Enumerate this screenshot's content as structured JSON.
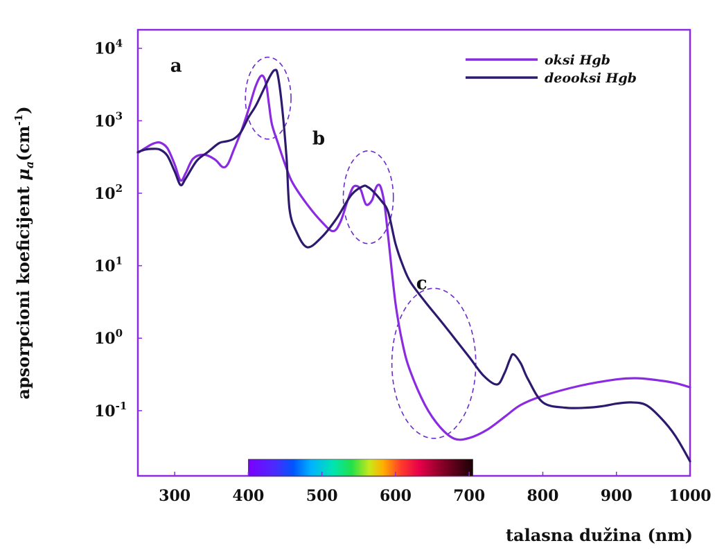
{
  "chart_data": {
    "type": "line",
    "title": "",
    "xlabel": "talasna dužina (nm)",
    "ylabel_main": "apsorpcioni koeficijent",
    "ylabel_symbol": "μ",
    "ylabel_subscript": "a",
    "ylabel_unit_base": "(cm",
    "ylabel_unit_sup": "-1",
    "ylabel_unit_close": ")",
    "xlim": [
      250,
      1000
    ],
    "xticks": [
      {
        "value": 300,
        "label": "300"
      },
      {
        "value": 400,
        "label": "400"
      },
      {
        "value": 500,
        "label": "500"
      },
      {
        "value": 600,
        "label": "600"
      },
      {
        "value": 700,
        "label": "700"
      },
      {
        "value": 800,
        "label": "800"
      },
      {
        "value": 900,
        "label": "900"
      },
      {
        "value": 1000,
        "label": "1000"
      }
    ],
    "yscale": "log",
    "ylim": [
      0.0126,
      18000
    ],
    "yticks": [
      {
        "value": 10000,
        "base": "10",
        "exp": "4"
      },
      {
        "value": 1000,
        "base": "10",
        "exp": "3"
      },
      {
        "value": 100,
        "base": "10",
        "exp": "2"
      },
      {
        "value": 10,
        "base": "10",
        "exp": "1"
      },
      {
        "value": 1,
        "base": "10",
        "exp": "0"
      },
      {
        "value": 0.1,
        "base": "10",
        "exp": "-1"
      }
    ],
    "grid": false,
    "legend_position": "top-right",
    "spectrum_bar": {
      "x_start": 400,
      "x_end": 705
    },
    "series": [
      {
        "name": "oksi Hgb",
        "color": "#8a2be2",
        "x": [
          250,
          260,
          270,
          280,
          290,
          300,
          308,
          315,
          325,
          340,
          355,
          365,
          372,
          380,
          390,
          400,
          410,
          418,
          424,
          428,
          432,
          440,
          450,
          460,
          480,
          500,
          515,
          525,
          535,
          542,
          548,
          553,
          560,
          568,
          572,
          576,
          580,
          585,
          590,
          600,
          610,
          620,
          640,
          660,
          680,
          700,
          725,
          750,
          770,
          800,
          850,
          900,
          930,
          960,
          980,
          1000
        ],
        "y": [
          360,
          420,
          480,
          500,
          420,
          250,
          150,
          190,
          300,
          340,
          290,
          230,
          250,
          390,
          700,
          1400,
          3000,
          4200,
          3300,
          1700,
          900,
          500,
          250,
          140,
          70,
          40,
          30,
          40,
          80,
          120,
          125,
          110,
          70,
          80,
          110,
          130,
          120,
          70,
          25,
          3,
          0.8,
          0.35,
          0.12,
          0.06,
          0.041,
          0.042,
          0.055,
          0.085,
          0.12,
          0.16,
          0.22,
          0.27,
          0.28,
          0.26,
          0.24,
          0.21
        ]
      },
      {
        "name": "deooksi Hgb",
        "color": "#2d1a6e",
        "x": [
          250,
          260,
          270,
          280,
          290,
          300,
          308,
          315,
          330,
          345,
          360,
          370,
          380,
          390,
          400,
          410,
          420,
          430,
          436,
          440,
          446,
          452,
          456,
          465,
          480,
          500,
          520,
          540,
          556,
          562,
          568,
          580,
          590,
          600,
          610,
          620,
          640,
          660,
          680,
          700,
          720,
          738,
          748,
          755,
          760,
          770,
          780,
          800,
          830,
          860,
          880,
          900,
          920,
          940,
          960,
          980,
          1000
        ],
        "y": [
          370,
          400,
          410,
          400,
          330,
          200,
          130,
          160,
          280,
          370,
          490,
          520,
          560,
          700,
          1100,
          1600,
          2600,
          4200,
          5000,
          4300,
          1500,
          300,
          60,
          30,
          18,
          25,
          45,
          95,
          125,
          122,
          110,
          80,
          55,
          20,
          10,
          6,
          3.2,
          1.8,
          1.0,
          0.55,
          0.3,
          0.23,
          0.33,
          0.5,
          0.6,
          0.45,
          0.27,
          0.13,
          0.11,
          0.11,
          0.115,
          0.125,
          0.13,
          0.12,
          0.08,
          0.045,
          0.02
        ]
      }
    ],
    "annotations": [
      {
        "label": "a",
        "cx": 427,
        "cy": 2050,
        "rx": 31,
        "ry_dec": 1.13,
        "label_x": 294,
        "label_y": 10000
      },
      {
        "label": "b",
        "cx": 563,
        "cy": 88,
        "rx": 34,
        "ry_dec": 1.28,
        "label_x": 487,
        "label_y": 1000
      },
      {
        "label": "c",
        "cx": 652,
        "cy": 0.45,
        "rx": 57,
        "ry_dec": 2.07,
        "label_x": 628,
        "label_y": 10
      }
    ]
  }
}
